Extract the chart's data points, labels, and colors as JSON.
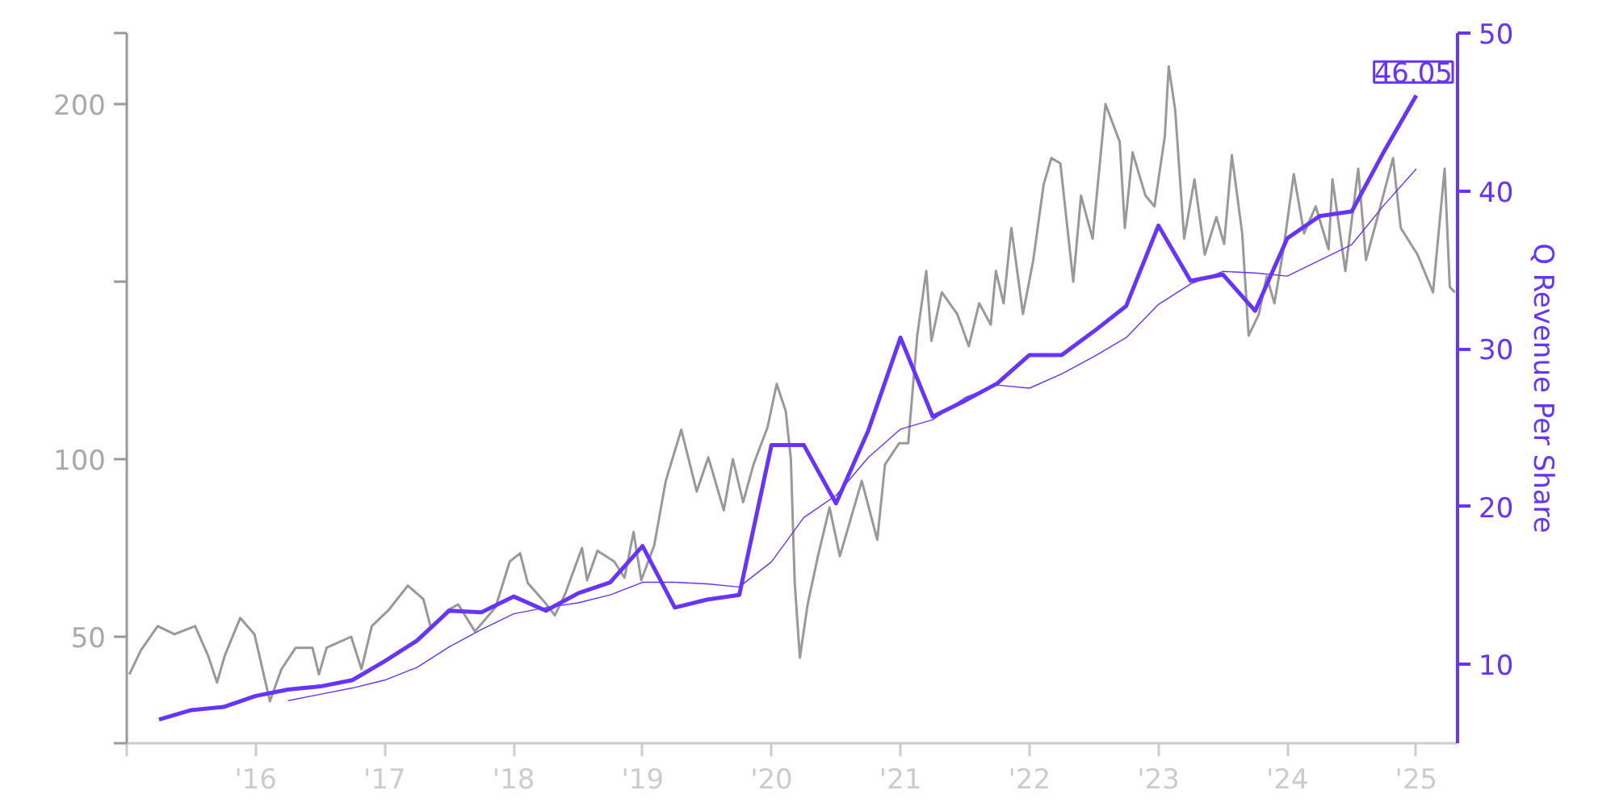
{
  "chart_data": {
    "type": "line",
    "y2label": "Q Revenue Per Share",
    "annotations": [
      "46.05"
    ],
    "xlim": [
      2015.0,
      2025.32
    ],
    "xticks": [
      {
        "value": 2015,
        "label": null
      },
      {
        "value": 2016,
        "label": "'16"
      },
      {
        "value": 2017,
        "label": "'17"
      },
      {
        "value": 2018,
        "label": "'18"
      },
      {
        "value": 2019,
        "label": "'19"
      },
      {
        "value": 2020,
        "label": "'20"
      },
      {
        "value": 2021,
        "label": "'21"
      },
      {
        "value": 2022,
        "label": "'22"
      },
      {
        "value": 2023,
        "label": "'23"
      },
      {
        "value": 2024,
        "label": "'24"
      },
      {
        "value": 2025,
        "label": "'25"
      }
    ],
    "ylim": [
      20,
      220
    ],
    "yticks": [
      {
        "value": 20,
        "label": null
      },
      50,
      100,
      {
        "value": 150,
        "label": null
      },
      200,
      {
        "value": 220,
        "label": null
      }
    ],
    "y2lim": [
      5,
      50
    ],
    "y2ticks": [
      10,
      20,
      30,
      40,
      50
    ],
    "grid": false,
    "series": [
      {
        "color": "#999999",
        "x": [
          2015.02,
          2015.11,
          2015.24,
          2015.37,
          2015.53,
          2015.63,
          2015.7,
          2015.76,
          2015.88,
          2015.99,
          2016.11,
          2016.2,
          2016.31,
          2016.44,
          2016.49,
          2016.55,
          2016.74,
          2016.82,
          2016.9,
          2017.03,
          2017.18,
          2017.3,
          2017.36,
          2017.49,
          2017.57,
          2017.7,
          2017.86,
          2017.97,
          2018.05,
          2018.11,
          2018.24,
          2018.32,
          2018.4,
          2018.53,
          2018.57,
          2018.65,
          2018.78,
          2018.86,
          2018.93,
          2018.99,
          2019.09,
          2019.18,
          2019.3,
          2019.42,
          2019.51,
          2019.63,
          2019.7,
          2019.78,
          2019.86,
          2019.97,
          2020.04,
          2020.11,
          2020.15,
          2020.18,
          2020.22,
          2020.28,
          2020.36,
          2020.45,
          2020.53,
          2020.7,
          2020.82,
          2020.88,
          2020.99,
          2021.06,
          2021.13,
          2021.2,
          2021.24,
          2021.32,
          2021.44,
          2021.53,
          2021.61,
          2021.7,
          2021.74,
          2021.8,
          2021.86,
          2021.95,
          2022.03,
          2022.11,
          2022.17,
          2022.24,
          2022.34,
          2022.4,
          2022.49,
          2022.59,
          2022.7,
          2022.74,
          2022.8,
          2022.9,
          2022.97,
          2023.05,
          2023.08,
          2023.13,
          2023.2,
          2023.28,
          2023.36,
          2023.45,
          2023.51,
          2023.57,
          2023.65,
          2023.7,
          2023.78,
          2023.84,
          2023.9,
          2023.97,
          2024.05,
          2024.13,
          2024.22,
          2024.32,
          2024.35,
          2024.45,
          2024.55,
          2024.61,
          2024.7,
          2024.82,
          2024.88,
          2025.01,
          2025.13,
          2025.22,
          2025.26,
          2025.3
        ],
        "values": [
          39.4,
          46.2,
          53.0,
          50.7,
          53.0,
          44.7,
          37.1,
          44.7,
          55.3,
          50.7,
          31.8,
          40.9,
          46.9,
          46.9,
          39.4,
          46.9,
          50.0,
          40.9,
          53.0,
          57.5,
          64.4,
          60.6,
          52.3,
          57.5,
          59.1,
          51.5,
          58.3,
          71.2,
          73.5,
          65.1,
          59.8,
          56.0,
          62.1,
          75.0,
          65.9,
          74.2,
          71.2,
          66.6,
          79.5,
          65.9,
          75.7,
          93.9,
          108.3,
          90.9,
          100.5,
          85.6,
          100.0,
          87.9,
          98.5,
          109.1,
          121.2,
          113.6,
          100.0,
          65.1,
          44.1,
          59.1,
          72.7,
          86.4,
          72.7,
          93.9,
          77.3,
          98.5,
          104.5,
          104.5,
          134.8,
          153.0,
          133.3,
          147.0,
          140.9,
          131.8,
          143.9,
          137.9,
          153.0,
          143.9,
          165.1,
          140.9,
          156.1,
          177.3,
          184.8,
          183.3,
          150.0,
          174.2,
          162.1,
          200.0,
          189.4,
          165.1,
          186.4,
          174.2,
          171.2,
          190.9,
          210.6,
          198.5,
          162.1,
          178.8,
          157.6,
          168.2,
          160.6,
          185.6,
          163.6,
          134.8,
          140.9,
          151.5,
          143.9,
          159.1,
          180.3,
          163.6,
          171.2,
          159.1,
          178.8,
          153.0,
          181.8,
          156.1,
          168.2,
          184.8,
          165.1,
          157.6,
          147.0,
          181.8,
          148.5,
          147.0
        ]
      },
      {
        "color": "#6633ff",
        "axis": "y2",
        "x": [
          2015.25,
          2015.5,
          2015.75,
          2016.0,
          2016.25,
          2016.5,
          2016.75,
          2017.0,
          2017.25,
          2017.5,
          2017.75,
          2018.0,
          2018.25,
          2018.5,
          2018.75,
          2019.0,
          2019.25,
          2019.5,
          2019.75,
          2020.0,
          2020.25,
          2020.5,
          2020.75,
          2021.0,
          2021.25,
          2021.5,
          2021.75,
          2022.0,
          2022.25,
          2022.5,
          2022.75,
          2023.0,
          2023.25,
          2023.5,
          2023.75,
          2024.0,
          2024.25,
          2024.5,
          2024.75,
          2025.0
        ],
        "values": [
          6.5,
          7.1,
          7.3,
          8.0,
          8.4,
          8.6,
          9.0,
          10.2,
          11.5,
          13.4,
          13.3,
          14.3,
          13.4,
          14.5,
          15.2,
          17.5,
          13.6,
          14.1,
          14.4,
          23.9,
          23.9,
          20.2,
          24.8,
          30.7,
          25.7,
          26.7,
          27.8,
          29.6,
          29.6,
          31.1,
          32.7,
          37.8,
          34.3,
          34.7,
          32.4,
          37.0,
          38.4,
          38.7,
          42.5,
          46.05
        ]
      },
      {
        "color": "#6633ff",
        "axis": "y2",
        "x": [
          2016.25,
          2016.5,
          2016.75,
          2017.0,
          2017.25,
          2017.5,
          2017.75,
          2018.0,
          2018.25,
          2018.5,
          2018.75,
          2019.0,
          2019.25,
          2019.5,
          2019.75,
          2020.0,
          2020.25,
          2020.5,
          2020.75,
          2021.0,
          2021.25,
          2021.5,
          2021.75,
          2022.0,
          2022.25,
          2022.5,
          2022.75,
          2023.0,
          2023.25,
          2023.5,
          2023.75,
          2024.0,
          2024.25,
          2024.5,
          2024.75,
          2025.0
        ],
        "values": [
          7.7,
          8.1,
          8.5,
          9.0,
          9.8,
          11.1,
          12.2,
          13.2,
          13.6,
          13.9,
          14.4,
          15.2,
          15.2,
          15.1,
          14.9,
          16.5,
          19.3,
          20.7,
          23.1,
          24.9,
          25.5,
          26.9,
          27.7,
          27.5,
          28.4,
          29.5,
          30.7,
          32.8,
          34.1,
          34.9,
          34.8,
          34.6,
          35.6,
          36.6,
          39.1,
          41.4
        ]
      }
    ]
  }
}
